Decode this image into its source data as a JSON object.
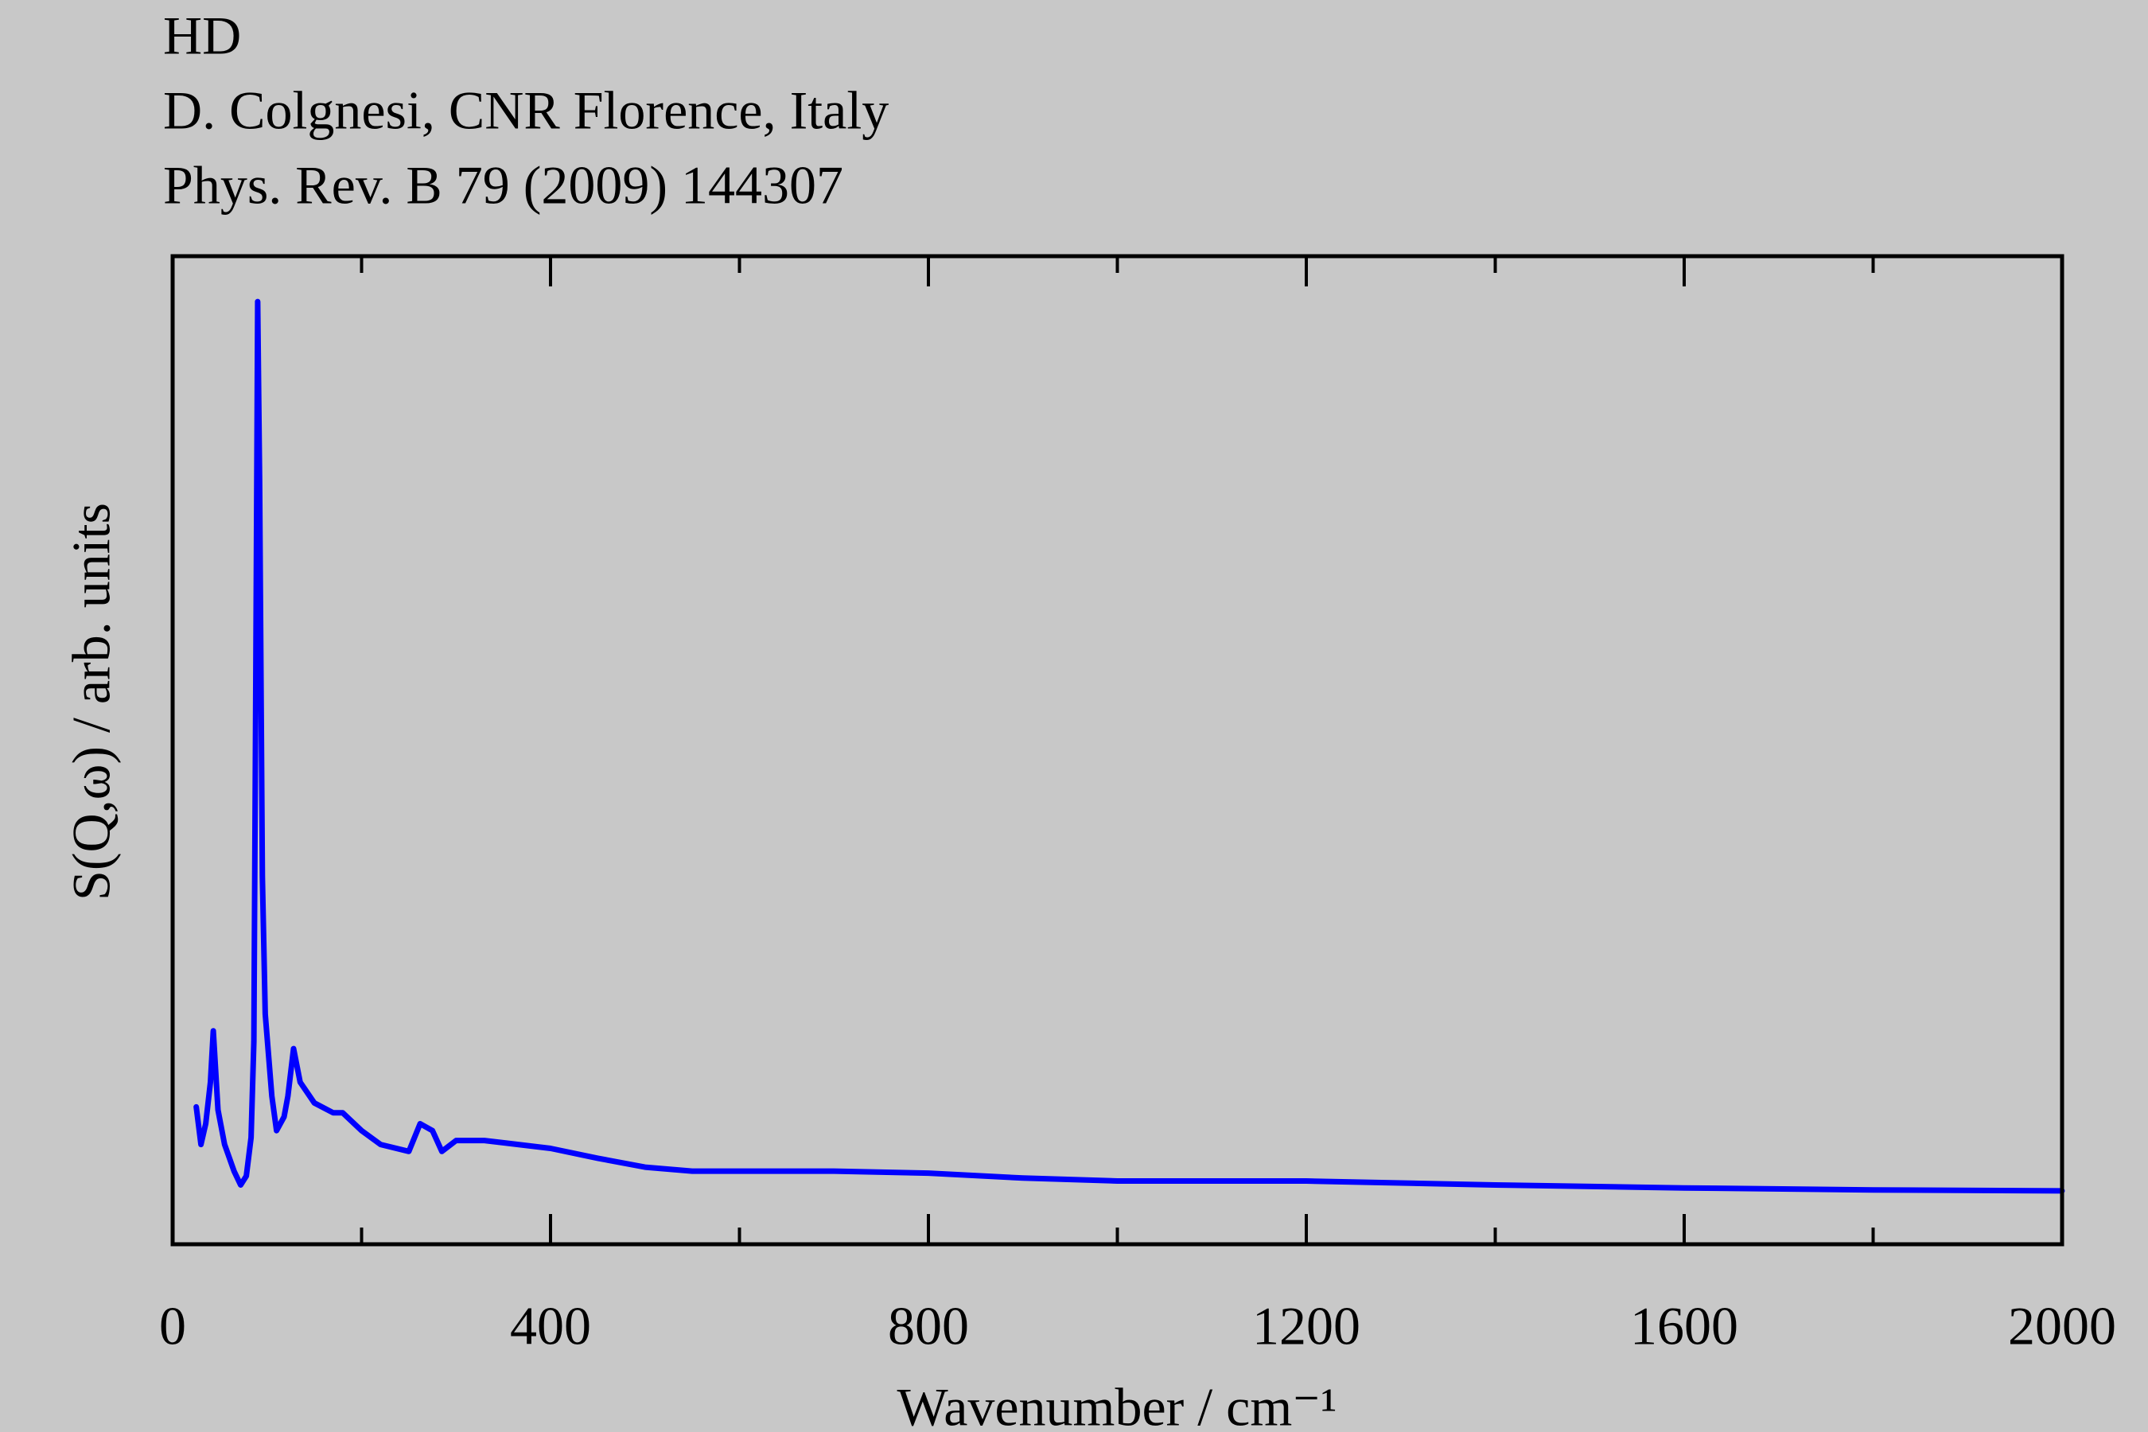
{
  "chart_data": {
    "type": "line",
    "title": "HD",
    "subtitle": "D. Colgnesi, CNR Florence, Italy",
    "reference": "Phys. Rev. B 79 (2009) 144307",
    "xlabel": "Wavenumber / cm⁻¹",
    "ylabel": "S(Q,ω) / arb. units",
    "xlim": [
      0,
      2000
    ],
    "xticks": [
      0,
      400,
      800,
      1200,
      1600,
      2000
    ],
    "xminorticks": [
      200,
      600,
      1000,
      1400,
      1800
    ],
    "ylim": [
      0,
      100
    ],
    "series": [
      {
        "color": "#0000ff",
        "x": [
          25,
          30,
          35,
          40,
          43,
          48,
          55,
          65,
          72,
          78,
          83,
          86,
          88,
          90,
          92,
          95,
          98,
          105,
          110,
          118,
          122,
          128,
          135,
          150,
          170,
          180,
          200,
          220,
          250,
          262,
          275,
          285,
          300,
          330,
          400,
          450,
          500,
          550,
          600,
          700,
          800,
          900,
          1000,
          1200,
          1400,
          1600,
          1800,
          2000
        ],
        "values": [
          13.9,
          10.1,
          12.2,
          16.4,
          21.6,
          13.6,
          10.1,
          7.4,
          6.0,
          6.9,
          10.8,
          20.5,
          56.6,
          95.4,
          77.4,
          37.2,
          23.3,
          15.0,
          11.5,
          12.9,
          15.0,
          19.8,
          16.4,
          14.3,
          13.3,
          13.3,
          11.5,
          10.1,
          9.4,
          12.2,
          11.5,
          9.4,
          10.5,
          10.5,
          9.7,
          8.7,
          7.8,
          7.4,
          7.4,
          7.4,
          7.2,
          6.7,
          6.4,
          6.4,
          6.0,
          5.7,
          5.5,
          5.4
        ]
      }
    ]
  }
}
